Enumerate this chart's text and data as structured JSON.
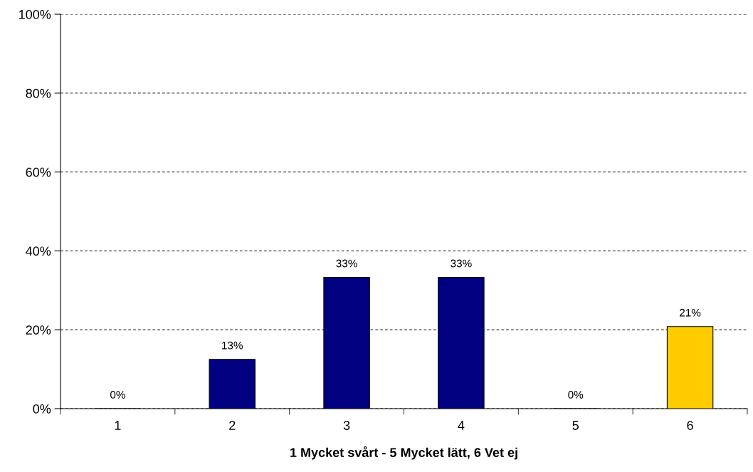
{
  "chart_data": {
    "type": "bar",
    "xlabel": "1 Mycket svårt - 5 Mycket lätt, 6 Vet ej",
    "categories": [
      "1",
      "2",
      "3",
      "4",
      "5",
      "6"
    ],
    "values": [
      0,
      12.5,
      33.3,
      33.3,
      0,
      20.8
    ],
    "colors": [
      "#000080",
      "#000080",
      "#000080",
      "#000080",
      "#000080",
      "#ffcc00"
    ],
    "value_labels": [
      "0%",
      "13%",
      "33%",
      "33%",
      "0%",
      "21%"
    ],
    "ylim": [
      0,
      100
    ],
    "yticks": [
      {
        "value": 0,
        "label": "0%"
      },
      {
        "value": 20,
        "label": "20%"
      },
      {
        "value": 40,
        "label": "40%"
      },
      {
        "value": 60,
        "label": "60%"
      },
      {
        "value": 80,
        "label": "80%"
      },
      {
        "value": 100,
        "label": "100%"
      }
    ],
    "grid": "y",
    "line_style": "dashed",
    "legend": false
  }
}
